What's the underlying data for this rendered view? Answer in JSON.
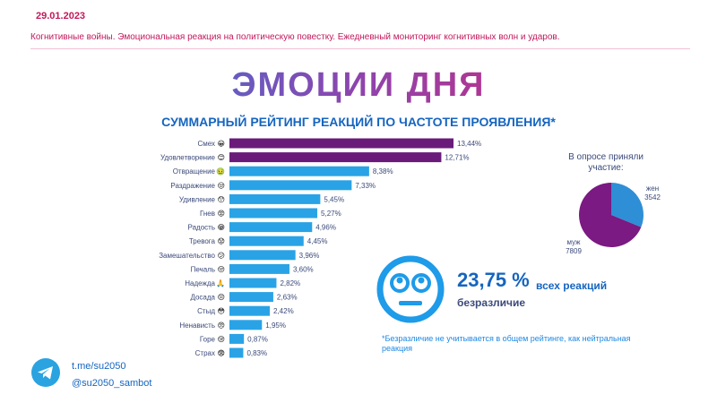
{
  "header": {
    "date": "29.01.2023",
    "subtitle": "Когнитивные войны. Эмоциональная реакция на политическую повестку. Ежедневный мониторинг когнитивных волн и ударов."
  },
  "main_title": "ЭМОЦИИ ДНЯ",
  "chart_title": "СУММАРНЫЙ РЕЙТИНГ РЕАКЦИЙ ПО ЧАСТОТЕ ПРОЯВЛЕНИЯ*",
  "colors": {
    "top": "#6a1b7a",
    "base": "#29a3e6",
    "pie_women": "#2e8fd6",
    "pie_men": "#7a1a82"
  },
  "chart_data": [
    {
      "type": "bar",
      "orientation": "horizontal",
      "title": "СУММАРНЫЙ РЕЙТИНГ РЕАКЦИЙ ПО ЧАСТОТЕ ПРОЯВЛЕНИЯ*",
      "categories": [
        "Смех",
        "Удовлетворение",
        "Отвращение",
        "Раздражение",
        "Удивление",
        "Гнев",
        "Радость",
        "Тревога",
        "Замешательство",
        "Печаль",
        "Надежда",
        "Досада",
        "Стыд",
        "Ненависть",
        "Горе",
        "Страх"
      ],
      "emojis": [
        "😀",
        "😊",
        "🤢",
        "😒",
        "😯",
        "😡",
        "😁",
        "😟",
        "😕",
        "😔",
        "🙏",
        "😣",
        "😳",
        "😠",
        "😢",
        "😨"
      ],
      "values": [
        13.44,
        12.71,
        8.38,
        7.33,
        5.45,
        5.27,
        4.96,
        4.45,
        3.96,
        3.6,
        2.82,
        2.63,
        2.42,
        1.95,
        0.87,
        0.83
      ],
      "value_labels": [
        "13,44%",
        "12,71%",
        "8,38%",
        "7,33%",
        "5,45%",
        "5,27%",
        "4,96%",
        "4,45%",
        "3,96%",
        "3,60%",
        "2,82%",
        "2,63%",
        "2,42%",
        "1,95%",
        "0,87%",
        "0,83%"
      ],
      "highlighted_top": 2
    },
    {
      "type": "pie",
      "title": "В опросе приняли участие:",
      "slices": [
        {
          "label": "жен",
          "value": 3542
        },
        {
          "label": "муж",
          "value": 7809
        }
      ]
    }
  ],
  "indifference": {
    "value": "23,75 %",
    "suffix": "всех реакций",
    "label": "безразличие",
    "footnote": "*Безразличие не учитывается в общем рейтинге, как нейтральная реакция"
  },
  "telegram": {
    "link": "t.me/su2050",
    "bot": "@su2050_sambot"
  }
}
